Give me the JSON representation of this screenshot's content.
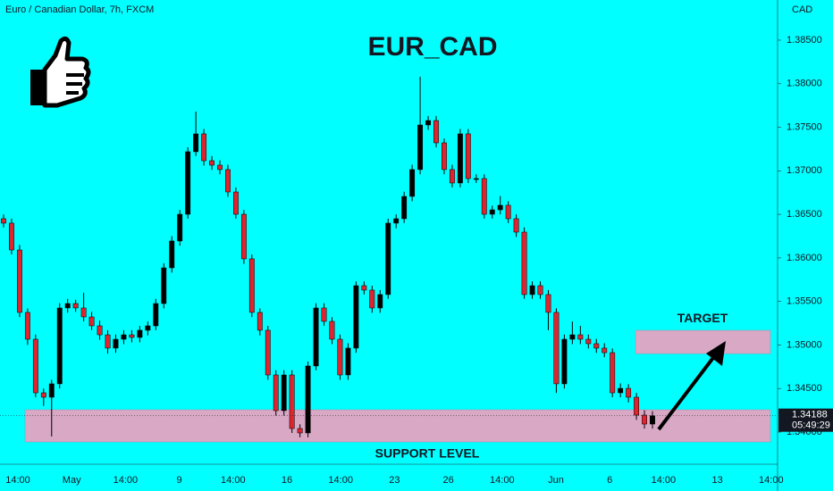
{
  "chart_data": {
    "type": "candlestick",
    "header": "Euro / Canadian Dollar, 7h, FXCM",
    "title": "EUR_CAD",
    "currency": "CAD",
    "up_color": "#000000",
    "down_color": "#e0242f",
    "background": "#00ffff",
    "ylim": [
      1.33631,
      1.38961
    ],
    "yticks": [
      {
        "value": 1.34,
        "label": "1.34000"
      },
      {
        "value": 1.345,
        "label": "1.34500"
      },
      {
        "value": 1.35,
        "label": "1.35000"
      },
      {
        "value": 1.355,
        "label": "1.35500"
      },
      {
        "value": 1.36,
        "label": "1.36000"
      },
      {
        "value": 1.365,
        "label": "1.36500"
      },
      {
        "value": 1.37,
        "label": "1.37000"
      },
      {
        "value": 1.375,
        "label": "1.37500"
      },
      {
        "value": 1.38,
        "label": "1.38000"
      },
      {
        "value": 1.385,
        "label": "1.38500"
      }
    ],
    "x_labels": [
      "14:00",
      "May",
      "14:00",
      "9",
      "14:00",
      "16",
      "14:00",
      "23",
      "26",
      "14:00",
      "Jun",
      "6",
      "14:00",
      "13",
      "14:00"
    ],
    "last_price": {
      "value": 1.34188,
      "label": "1.34188",
      "countdown": "05:49:29"
    },
    "zones": [
      {
        "name": "SUPPORT LEVEL",
        "range": [
          1.33887,
          1.34256
        ],
        "color": "#d8a8c4"
      },
      {
        "name": "TARGET",
        "range": [
          1.34901,
          1.35168
        ],
        "color": "#d8a8c4"
      }
    ],
    "ohlc": [
      [
        1.3645,
        1.365,
        1.3635,
        1.36399
      ],
      [
        1.36399,
        1.3645,
        1.3604,
        1.36091
      ],
      [
        1.36091,
        1.3615,
        1.3532,
        1.35374
      ],
      [
        1.35374,
        1.3542,
        1.35,
        1.35066
      ],
      [
        1.35066,
        1.3512,
        1.344,
        1.34451
      ],
      [
        1.34451,
        1.345,
        1.343,
        1.344
      ],
      [
        1.344,
        1.346,
        1.3395,
        1.34554
      ],
      [
        1.34554,
        1.3548,
        1.345,
        1.35425
      ],
      [
        1.35425,
        1.3553,
        1.3537,
        1.35476
      ],
      [
        1.35476,
        1.3552,
        1.3538,
        1.35425
      ],
      [
        1.35425,
        1.356,
        1.3527,
        1.35322
      ],
      [
        1.35322,
        1.3538,
        1.3517,
        1.3522
      ],
      [
        1.3522,
        1.3528,
        1.3506,
        1.35117
      ],
      [
        1.35117,
        1.3517,
        1.349,
        1.34964
      ],
      [
        1.34964,
        1.3512,
        1.3491,
        1.35066
      ],
      [
        1.35066,
        1.3517,
        1.3501,
        1.35117
      ],
      [
        1.35117,
        1.3517,
        1.3503,
        1.35087
      ],
      [
        1.35087,
        1.3522,
        1.3503,
        1.35169
      ],
      [
        1.35169,
        1.3527,
        1.3511,
        1.3522
      ],
      [
        1.3522,
        1.3553,
        1.3517,
        1.35476
      ],
      [
        1.35476,
        1.3594,
        1.3542,
        1.35886
      ],
      [
        1.35886,
        1.3625,
        1.3583,
        1.36194
      ],
      [
        1.36194,
        1.3655,
        1.3614,
        1.36501
      ],
      [
        1.36501,
        1.3727,
        1.3645,
        1.37219
      ],
      [
        1.37219,
        1.3768,
        1.3717,
        1.37424
      ],
      [
        1.37424,
        1.3748,
        1.3706,
        1.37116
      ],
      [
        1.37116,
        1.3717,
        1.3701,
        1.37065
      ],
      [
        1.37065,
        1.3712,
        1.3696,
        1.37014
      ],
      [
        1.37014,
        1.3707,
        1.367,
        1.36757
      ],
      [
        1.36757,
        1.3681,
        1.3645,
        1.36501
      ],
      [
        1.36501,
        1.3655,
        1.3593,
        1.35989
      ],
      [
        1.35989,
        1.3604,
        1.3532,
        1.35374
      ],
      [
        1.35374,
        1.3542,
        1.3511,
        1.35169
      ],
      [
        1.35169,
        1.3522,
        1.346,
        1.34656
      ],
      [
        1.34656,
        1.3471,
        1.3419,
        1.34246
      ],
      [
        1.34246,
        1.3471,
        1.3419,
        1.34656
      ],
      [
        1.34656,
        1.3471,
        1.3399,
        1.34041
      ],
      [
        1.34041,
        1.3409,
        1.3394,
        1.3399
      ],
      [
        1.3399,
        1.3481,
        1.3394,
        1.34759
      ],
      [
        1.34759,
        1.3548,
        1.3471,
        1.35425
      ],
      [
        1.35425,
        1.3548,
        1.3522,
        1.35271
      ],
      [
        1.35271,
        1.3532,
        1.3501,
        1.35066
      ],
      [
        1.35066,
        1.3512,
        1.346,
        1.34656
      ],
      [
        1.34656,
        1.3502,
        1.346,
        1.34964
      ],
      [
        1.34964,
        1.3573,
        1.3491,
        1.35681
      ],
      [
        1.35681,
        1.3573,
        1.3558,
        1.3563
      ],
      [
        1.3563,
        1.3568,
        1.3537,
        1.35425
      ],
      [
        1.35425,
        1.3563,
        1.3537,
        1.35579
      ],
      [
        1.35579,
        1.3645,
        1.3553,
        1.36399
      ],
      [
        1.36399,
        1.365,
        1.3634,
        1.3645
      ],
      [
        1.3645,
        1.3676,
        1.364,
        1.36706
      ],
      [
        1.36706,
        1.3707,
        1.3665,
        1.37014
      ],
      [
        1.37014,
        1.3808,
        1.3696,
        1.37526
      ],
      [
        1.37526,
        1.3763,
        1.3747,
        1.37577
      ],
      [
        1.37577,
        1.3763,
        1.3727,
        1.37321
      ],
      [
        1.37321,
        1.3737,
        1.3696,
        1.37014
      ],
      [
        1.37014,
        1.3707,
        1.3681,
        1.3686
      ],
      [
        1.3686,
        1.3748,
        1.3681,
        1.37424
      ],
      [
        1.37424,
        1.3748,
        1.3686,
        1.36911
      ],
      [
        1.36911,
        1.3696,
        1.3686,
        1.36911
      ],
      [
        1.36911,
        1.3696,
        1.3645,
        1.36501
      ],
      [
        1.36501,
        1.366,
        1.3645,
        1.36552
      ],
      [
        1.36552,
        1.3671,
        1.365,
        1.36604
      ],
      [
        1.36604,
        1.3665,
        1.364,
        1.3645
      ],
      [
        1.3645,
        1.365,
        1.3624,
        1.36296
      ],
      [
        1.36296,
        1.3635,
        1.3553,
        1.35579
      ],
      [
        1.35579,
        1.3573,
        1.3553,
        1.35681
      ],
      [
        1.35681,
        1.3573,
        1.3553,
        1.35579
      ],
      [
        1.35579,
        1.3563,
        1.3517,
        1.35374
      ],
      [
        1.35374,
        1.3542,
        1.3445,
        1.34554
      ],
      [
        1.34554,
        1.3512,
        1.345,
        1.35066
      ],
      [
        1.35066,
        1.3527,
        1.3501,
        1.35117
      ],
      [
        1.35117,
        1.3522,
        1.3501,
        1.35066
      ],
      [
        1.35066,
        1.3512,
        1.3496,
        1.35015
      ],
      [
        1.35015,
        1.3507,
        1.3491,
        1.34964
      ],
      [
        1.34964,
        1.3502,
        1.3486,
        1.34912
      ],
      [
        1.34912,
        1.3496,
        1.344,
        1.34451
      ],
      [
        1.34451,
        1.3456,
        1.344,
        1.34502
      ],
      [
        1.34502,
        1.3455,
        1.3434,
        1.344
      ],
      [
        1.344,
        1.3445,
        1.3414,
        1.34195
      ],
      [
        1.34195,
        1.3425,
        1.3404,
        1.34092
      ],
      [
        1.34092,
        1.3424,
        1.3404,
        1.34188
      ]
    ]
  }
}
